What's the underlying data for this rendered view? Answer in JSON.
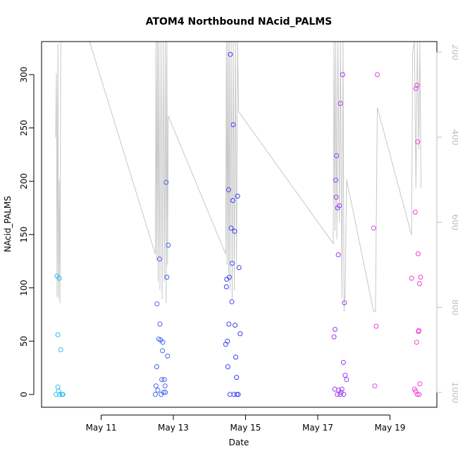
{
  "chart_data": {
    "type": "scatter",
    "title": "ATOM4 Northbound NAcid_PALMS",
    "xlabel": "Date",
    "ylabel": "NAcid_PALMS",
    "x_ticks": [
      {
        "day": 11,
        "label": "May 11"
      },
      {
        "day": 13,
        "label": "May 13"
      },
      {
        "day": 15,
        "label": "May 15"
      },
      {
        "day": 17,
        "label": "May 17"
      },
      {
        "day": 19,
        "label": "May 19"
      }
    ],
    "xlim": [
      9.35,
      20.3
    ],
    "ylim": [
      -12,
      331
    ],
    "y_ticks": [
      0,
      50,
      100,
      150,
      200,
      250,
      300
    ],
    "right_axis": {
      "label": "",
      "ylim": [
        1035,
        175
      ],
      "ticks": [
        200,
        400,
        600,
        800,
        1000
      ],
      "color": "#bdbdbd"
    },
    "colors": {
      "plot_border": "#000000",
      "right_axis": "#bdbdbd",
      "line": "#c8c8c8"
    },
    "series": [
      {
        "name": "NAcid_PALMS",
        "points": [
          {
            "x": 9.75,
            "y": 0,
            "c": "#2bbcf2"
          },
          {
            "x": 9.78,
            "y": 111,
            "c": "#2bbcf2"
          },
          {
            "x": 9.8,
            "y": 56,
            "c": "#2bbcf2"
          },
          {
            "x": 9.8,
            "y": 7,
            "c": "#2bbcf2"
          },
          {
            "x": 9.82,
            "y": 3,
            "c": "#2bbcf2"
          },
          {
            "x": 9.84,
            "y": 109,
            "c": "#2bbcf2"
          },
          {
            "x": 9.86,
            "y": 0,
            "c": "#2bbcf2"
          },
          {
            "x": 9.88,
            "y": 42,
            "c": "#2bbcf2"
          },
          {
            "x": 9.92,
            "y": 0,
            "c": "#2bbcf2"
          },
          {
            "x": 9.94,
            "y": 0,
            "c": "#2bbcf2"
          },
          {
            "x": 12.5,
            "y": 0,
            "c": "#3f63f2"
          },
          {
            "x": 12.52,
            "y": 8,
            "c": "#3f63f2"
          },
          {
            "x": 12.54,
            "y": 26,
            "c": "#3f63f2"
          },
          {
            "x": 12.55,
            "y": 85,
            "c": "#3f63f2"
          },
          {
            "x": 12.57,
            "y": 4,
            "c": "#3f63f2"
          },
          {
            "x": 12.6,
            "y": 52,
            "c": "#3f63f2"
          },
          {
            "x": 12.62,
            "y": 127,
            "c": "#3f63f2"
          },
          {
            "x": 12.63,
            "y": 66,
            "c": "#3f63f2"
          },
          {
            "x": 12.65,
            "y": 51,
            "c": "#3f63f2"
          },
          {
            "x": 12.66,
            "y": 0,
            "c": "#3f63f2"
          },
          {
            "x": 12.68,
            "y": 14,
            "c": "#3f63f2"
          },
          {
            "x": 12.7,
            "y": 41,
            "c": "#3f63f2"
          },
          {
            "x": 12.71,
            "y": 49,
            "c": "#3f63f2"
          },
          {
            "x": 12.73,
            "y": 2,
            "c": "#3f63f2"
          },
          {
            "x": 12.75,
            "y": 14,
            "c": "#3f63f2"
          },
          {
            "x": 12.77,
            "y": 8,
            "c": "#3f63f2"
          },
          {
            "x": 12.78,
            "y": 2,
            "c": "#3f63f2"
          },
          {
            "x": 12.8,
            "y": 199,
            "c": "#3f63f2"
          },
          {
            "x": 12.82,
            "y": 110,
            "c": "#3f63f2"
          },
          {
            "x": 12.84,
            "y": 36,
            "c": "#3f63f2"
          },
          {
            "x": 12.86,
            "y": 140,
            "c": "#3f63f2"
          },
          {
            "x": 14.45,
            "y": 47,
            "c": "#3a3ff2"
          },
          {
            "x": 14.47,
            "y": 101,
            "c": "#3a3ff2"
          },
          {
            "x": 14.48,
            "y": 108,
            "c": "#3a3ff2"
          },
          {
            "x": 14.5,
            "y": 50,
            "c": "#3a3ff2"
          },
          {
            "x": 14.51,
            "y": 26,
            "c": "#3a3ff2"
          },
          {
            "x": 14.53,
            "y": 192,
            "c": "#3a3ff2"
          },
          {
            "x": 14.54,
            "y": 66,
            "c": "#3a3ff2"
          },
          {
            "x": 14.55,
            "y": 110,
            "c": "#3a3ff2"
          },
          {
            "x": 14.57,
            "y": 0,
            "c": "#3a3ff2"
          },
          {
            "x": 14.58,
            "y": 319,
            "c": "#3a3ff2"
          },
          {
            "x": 14.6,
            "y": 156,
            "c": "#3a3ff2"
          },
          {
            "x": 14.62,
            "y": 87,
            "c": "#3a3ff2"
          },
          {
            "x": 14.63,
            "y": 123,
            "c": "#3a3ff2"
          },
          {
            "x": 14.65,
            "y": 182,
            "c": "#3a3ff2"
          },
          {
            "x": 14.66,
            "y": 253,
            "c": "#3a3ff2"
          },
          {
            "x": 14.68,
            "y": 0,
            "c": "#3a3ff2"
          },
          {
            "x": 14.7,
            "y": 153,
            "c": "#3a3ff2"
          },
          {
            "x": 14.71,
            "y": 65,
            "c": "#3a3ff2"
          },
          {
            "x": 14.73,
            "y": 35,
            "c": "#3a3ff2"
          },
          {
            "x": 14.75,
            "y": 16,
            "c": "#3a3ff2"
          },
          {
            "x": 14.76,
            "y": 0,
            "c": "#3a3ff2"
          },
          {
            "x": 14.78,
            "y": 186,
            "c": "#3a3ff2"
          },
          {
            "x": 14.8,
            "y": 0,
            "c": "#3a3ff2"
          },
          {
            "x": 14.82,
            "y": 119,
            "c": "#3a3ff2"
          },
          {
            "x": 14.85,
            "y": 57,
            "c": "#3a3ff2"
          },
          {
            "x": 17.45,
            "y": 54,
            "c": "#9b3bf0"
          },
          {
            "x": 17.47,
            "y": 5,
            "c": "#9b3bf0"
          },
          {
            "x": 17.48,
            "y": 61,
            "c": "#9b3bf0"
          },
          {
            "x": 17.5,
            "y": 201,
            "c": "#9b3bf0"
          },
          {
            "x": 17.51,
            "y": 185,
            "c": "#9b3bf0"
          },
          {
            "x": 17.52,
            "y": 224,
            "c": "#9b3bf0"
          },
          {
            "x": 17.54,
            "y": 0,
            "c": "#9b3bf0"
          },
          {
            "x": 17.55,
            "y": 175,
            "c": "#9b3bf0"
          },
          {
            "x": 17.57,
            "y": 131,
            "c": "#9b3bf0"
          },
          {
            "x": 17.58,
            "y": 4,
            "c": "#9b3bf0"
          },
          {
            "x": 17.6,
            "y": 177,
            "c": "#9b3bf0"
          },
          {
            "x": 17.62,
            "y": 0,
            "c": "#9b3bf0"
          },
          {
            "x": 17.63,
            "y": 273,
            "c": "#9b3bf0"
          },
          {
            "x": 17.65,
            "y": 2,
            "c": "#9b3bf0"
          },
          {
            "x": 17.67,
            "y": 5,
            "c": "#9b3bf0"
          },
          {
            "x": 17.69,
            "y": 300,
            "c": "#9b3bf0"
          },
          {
            "x": 17.71,
            "y": 30,
            "c": "#9b3bf0"
          },
          {
            "x": 17.72,
            "y": 0,
            "c": "#9b3bf0"
          },
          {
            "x": 17.74,
            "y": 86,
            "c": "#9b3bf0"
          },
          {
            "x": 17.76,
            "y": 18,
            "c": "#9b3bf0"
          },
          {
            "x": 17.8,
            "y": 14,
            "c": "#9b3bf0"
          },
          {
            "x": 18.55,
            "y": 156,
            "c": "#e03ef0"
          },
          {
            "x": 18.58,
            "y": 8,
            "c": "#e03ef0"
          },
          {
            "x": 18.62,
            "y": 64,
            "c": "#e03ef0"
          },
          {
            "x": 18.65,
            "y": 300,
            "c": "#e03ef0"
          },
          {
            "x": 19.6,
            "y": 109,
            "c": "#f03ed8"
          },
          {
            "x": 19.68,
            "y": 5,
            "c": "#f03ed8"
          },
          {
            "x": 19.7,
            "y": 171,
            "c": "#f03ed8"
          },
          {
            "x": 19.71,
            "y": 3,
            "c": "#f03ed8"
          },
          {
            "x": 19.72,
            "y": 287,
            "c": "#f03ed8"
          },
          {
            "x": 19.74,
            "y": 49,
            "c": "#f03ed8"
          },
          {
            "x": 19.75,
            "y": 290,
            "c": "#f03ed8"
          },
          {
            "x": 19.76,
            "y": 0,
            "c": "#f03ed8"
          },
          {
            "x": 19.77,
            "y": 237,
            "c": "#f03ed8"
          },
          {
            "x": 19.78,
            "y": 132,
            "c": "#f03ed8"
          },
          {
            "x": 19.79,
            "y": 59,
            "c": "#f03ed8"
          },
          {
            "x": 19.8,
            "y": 60,
            "c": "#f03ed8"
          },
          {
            "x": 19.81,
            "y": 0,
            "c": "#f03ed8"
          },
          {
            "x": 19.82,
            "y": 104,
            "c": "#f03ed8"
          },
          {
            "x": 19.83,
            "y": 10,
            "c": "#f03ed8"
          },
          {
            "x": 19.85,
            "y": 110,
            "c": "#f03ed8"
          }
        ]
      },
      {
        "name": "right_axis_series",
        "axis": "right",
        "line": [
          [
            9.74,
            400
          ],
          [
            9.76,
            250
          ],
          [
            9.78,
            775
          ],
          [
            9.8,
            180
          ],
          [
            9.82,
            780
          ],
          [
            9.84,
            500
          ],
          [
            9.86,
            790
          ],
          [
            9.88,
            175
          ],
          [
            9.92,
            175
          ],
          [
            10.68,
            175
          ],
          [
            12.5,
            675
          ],
          [
            12.52,
            175
          ],
          [
            12.54,
            690
          ],
          [
            12.56,
            175
          ],
          [
            12.58,
            740
          ],
          [
            12.6,
            175
          ],
          [
            12.63,
            760
          ],
          [
            12.66,
            175
          ],
          [
            12.69,
            780
          ],
          [
            12.72,
            175
          ],
          [
            12.75,
            740
          ],
          [
            12.78,
            175
          ],
          [
            12.8,
            790
          ],
          [
            12.82,
            175
          ],
          [
            12.84,
            700
          ],
          [
            12.86,
            350
          ],
          [
            14.45,
            675
          ],
          [
            14.47,
            175
          ],
          [
            14.49,
            700
          ],
          [
            14.51,
            175
          ],
          [
            14.53,
            720
          ],
          [
            14.55,
            175
          ],
          [
            14.57,
            760
          ],
          [
            14.6,
            175
          ],
          [
            14.63,
            780
          ],
          [
            14.66,
            175
          ],
          [
            14.69,
            760
          ],
          [
            14.72,
            175
          ],
          [
            14.75,
            700
          ],
          [
            14.78,
            175
          ],
          [
            14.81,
            340
          ],
          [
            17.43,
            650
          ],
          [
            17.45,
            175
          ],
          [
            17.48,
            620
          ],
          [
            17.5,
            175
          ],
          [
            17.53,
            640
          ],
          [
            17.56,
            175
          ],
          [
            17.6,
            600
          ],
          [
            17.63,
            175
          ],
          [
            17.67,
            780
          ],
          [
            17.7,
            175
          ],
          [
            17.73,
            810
          ],
          [
            17.76,
            760
          ],
          [
            17.8,
            500
          ],
          [
            18.55,
            810
          ],
          [
            18.6,
            810
          ],
          [
            18.65,
            330
          ],
          [
            19.6,
            630
          ],
          [
            19.63,
            200
          ],
          [
            19.68,
            175
          ],
          [
            19.72,
            520
          ],
          [
            19.76,
            175
          ],
          [
            19.8,
            430
          ],
          [
            19.83,
            175
          ],
          [
            19.86,
            520
          ]
        ]
      }
    ]
  }
}
